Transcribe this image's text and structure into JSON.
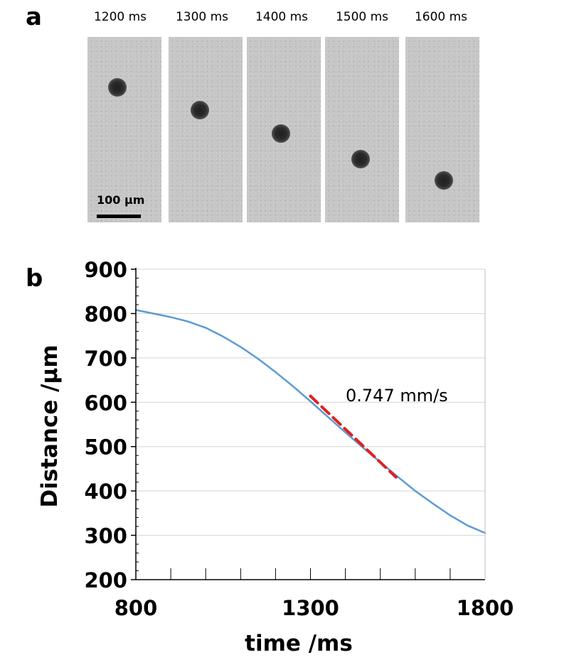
{
  "panel_a": {
    "label": "a",
    "scale_bar": "100 µm",
    "frames": [
      {
        "time": "1200 ms"
      },
      {
        "time": "1300 ms"
      },
      {
        "time": "1400 ms"
      },
      {
        "time": "1500 ms"
      },
      {
        "time": "1600 ms"
      }
    ]
  },
  "panel_b": {
    "label": "b",
    "annotation": "0.747 mm/s"
  },
  "chart_data": {
    "type": "line",
    "xlabel": "time /ms",
    "ylabel": "Distance /µm",
    "xlim": [
      800,
      1800
    ],
    "ylim": [
      200,
      900
    ],
    "xticks": [
      800,
      1300,
      1800
    ],
    "yticks": [
      200,
      300,
      400,
      500,
      600,
      700,
      800,
      900
    ],
    "grid": "horizontal",
    "series": [
      {
        "color": "#5b9bd5",
        "style": "solid",
        "x": [
          800,
          850,
          900,
          950,
          1000,
          1050,
          1100,
          1150,
          1200,
          1250,
          1300,
          1350,
          1400,
          1450,
          1500,
          1550,
          1600,
          1650,
          1700,
          1750,
          1800
        ],
        "y": [
          808,
          800,
          792,
          782,
          768,
          748,
          725,
          698,
          668,
          636,
          602,
          567,
          532,
          498,
          465,
          432,
          400,
          372,
          345,
          322,
          305
        ]
      },
      {
        "color": "#e02020",
        "style": "dashed",
        "x": [
          1300,
          1545
        ],
        "y": [
          614,
          431
        ]
      }
    ]
  }
}
